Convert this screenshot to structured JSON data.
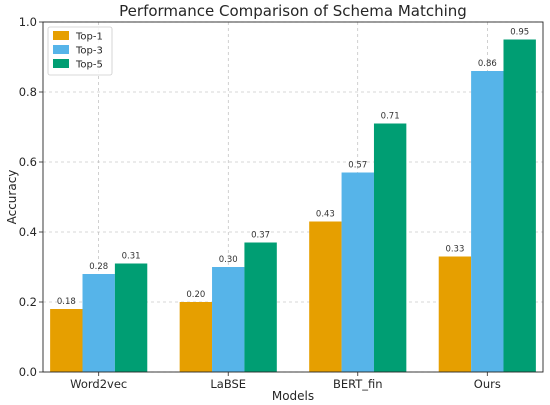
{
  "chart_data": {
    "type": "bar",
    "title": "Performance Comparison of Schema Matching",
    "xlabel": "Models",
    "ylabel": "Accuracy",
    "categories": [
      "Word2vec",
      "LaBSE",
      "BERT_fin",
      "Ours"
    ],
    "series": [
      {
        "name": "Top-1",
        "color": "#E69F00",
        "values": [
          0.18,
          0.2,
          0.43,
          0.33
        ],
        "labels": [
          "0.18",
          "0.20",
          "0.43",
          "0.33"
        ]
      },
      {
        "name": "Top-3",
        "color": "#56B4E9",
        "values": [
          0.28,
          0.3,
          0.57,
          0.86
        ],
        "labels": [
          "0.28",
          "0.30",
          "0.57",
          "0.86"
        ]
      },
      {
        "name": "Top-5",
        "color": "#009E73",
        "values": [
          0.31,
          0.37,
          0.71,
          0.95
        ],
        "labels": [
          "0.31",
          "0.37",
          "0.71",
          "0.95"
        ]
      }
    ],
    "ylim": [
      0,
      1.0
    ],
    "yticks": [
      0.0,
      0.2,
      0.4,
      0.6,
      0.8,
      1.0
    ],
    "ytick_labels": [
      "0.0",
      "0.2",
      "0.4",
      "0.6",
      "0.8",
      "1.0"
    ],
    "grid": true,
    "legend_position": "top-left"
  }
}
